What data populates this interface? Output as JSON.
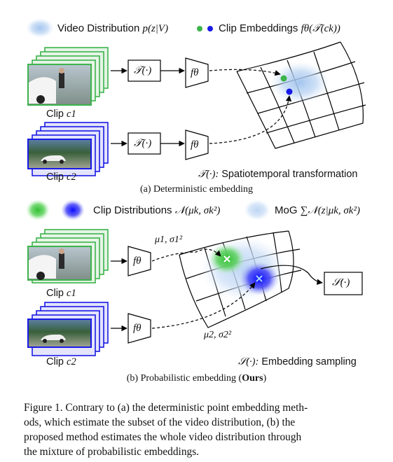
{
  "part_a": {
    "legend_video": "Video Distribution",
    "legend_video_math": "p(z|V)",
    "legend_clip": "Clip Embeddings",
    "legend_clip_math": "fθ(𝒯(ck))",
    "transform_box": "𝒯(·)",
    "encoder_box": "fθ",
    "clip1_label": "Clip",
    "clip1_math": "c1",
    "clip2_label": "Clip",
    "clip2_math": "c2",
    "note_symbol": "𝒯(·):",
    "note_text": "Spatiotemporal transformation",
    "subcaption": "(a) Deterministic embedding"
  },
  "part_b": {
    "legend_clip_dist": "Clip Distributions",
    "legend_clip_dist_math": "𝒩(μk, σk²)",
    "legend_mog": "MoG",
    "legend_mog_math": "∑𝒩(z|μk, σk²)",
    "encoder_box": "fθ",
    "mu1_label": "μ1, σ1²",
    "mu2_label": "μ2, σ2²",
    "sampling_box": "𝒮(·)",
    "clip1_label": "Clip",
    "clip1_math": "c1",
    "clip2_label": "Clip",
    "clip2_math": "c2",
    "note_symbol": "𝒮(·):",
    "note_text": "Embedding sampling",
    "subcaption_prefix": "(b) Probabilistic embedding (",
    "subcaption_bold": "Ours",
    "subcaption_suffix": ")"
  },
  "caption": {
    "line1": "Figure 1. Contrary to (a) the deterministic point embedding meth-",
    "line2": "ods, which estimate the subset of the video distribution, (b) the",
    "line3": "proposed method estimates the whole video distribution through",
    "line4": "the mixture of probabilistic embeddings."
  },
  "colors": {
    "clip1_green": "#3cb44b",
    "clip2_blue": "#1a1ae6",
    "video_dist_blue": "#a9c8ee"
  }
}
